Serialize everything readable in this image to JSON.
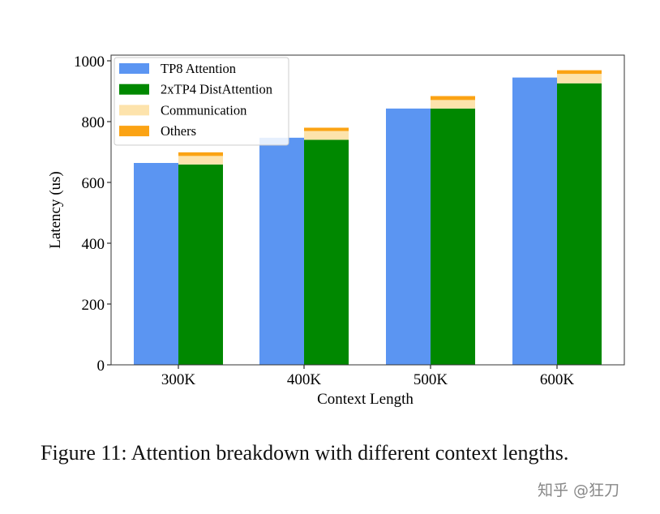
{
  "chart_data": {
    "type": "bar",
    "stacked_second_bar": true,
    "categories": [
      "300K",
      "400K",
      "500K",
      "600K"
    ],
    "xlabel": "Context Length",
    "ylabel": "Latency (us)",
    "ylim": [
      0,
      1000
    ],
    "yticks": [
      0,
      200,
      400,
      600,
      800,
      1000
    ],
    "legend_position": "top-left",
    "grid": false,
    "series": [
      {
        "name": "TP8 Attention",
        "color": "#5b95f2",
        "bar": 0,
        "values": [
          664,
          747,
          843,
          945
        ]
      },
      {
        "name": "2xTP4 DistAttention",
        "color": "#008800",
        "bar": 1,
        "values": [
          659,
          740,
          843,
          926
        ]
      },
      {
        "name": "Communication",
        "color": "#fde3ac",
        "bar": 1,
        "values": [
          28,
          29,
          28,
          31
        ]
      },
      {
        "name": "Others",
        "color": "#fba314",
        "bar": 1,
        "values": [
          12,
          11,
          13,
          12
        ]
      }
    ]
  },
  "caption": "Figure 11: Attention breakdown with different context lengths.",
  "watermark": "知乎 @狂刀"
}
